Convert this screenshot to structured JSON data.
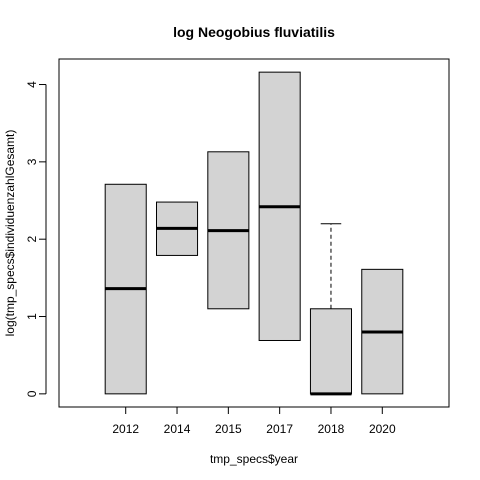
{
  "chart_data": {
    "type": "boxplot",
    "title": "log Neogobius fluviatilis",
    "xlabel": "tmp_specs$year",
    "ylabel": "log(tmp_specs$individuenzahlGesamt)",
    "ylim": [
      -0.17,
      4.33
    ],
    "yticks": [
      0,
      1,
      2,
      3,
      4
    ],
    "categories": [
      "2012",
      "2014",
      "2015",
      "2017",
      "2018",
      "2020"
    ],
    "boxes": [
      {
        "category": "2012",
        "lower_whisker": 0.0,
        "q1": 0.0,
        "median": 1.36,
        "q3": 2.71,
        "upper_whisker": 2.71
      },
      {
        "category": "2014",
        "lower_whisker": 1.79,
        "q1": 1.79,
        "median": 2.14,
        "q3": 2.48,
        "upper_whisker": 2.48
      },
      {
        "category": "2015",
        "lower_whisker": 1.1,
        "q1": 1.1,
        "median": 2.11,
        "q3": 3.13,
        "upper_whisker": 3.13
      },
      {
        "category": "2017",
        "lower_whisker": 0.69,
        "q1": 0.69,
        "median": 2.42,
        "q3": 4.16,
        "upper_whisker": 4.16
      },
      {
        "category": "2018",
        "lower_whisker": 0.0,
        "q1": 0.0,
        "median": 0.0,
        "q3": 1.1,
        "upper_whisker": 2.2
      },
      {
        "category": "2020",
        "lower_whisker": 0.0,
        "q1": 0.0,
        "median": 0.8,
        "q3": 1.61,
        "upper_whisker": 1.61
      }
    ],
    "colors": {
      "box_fill": "#d3d3d3",
      "stroke": "#000000"
    },
    "grid": false,
    "legend": "none"
  }
}
